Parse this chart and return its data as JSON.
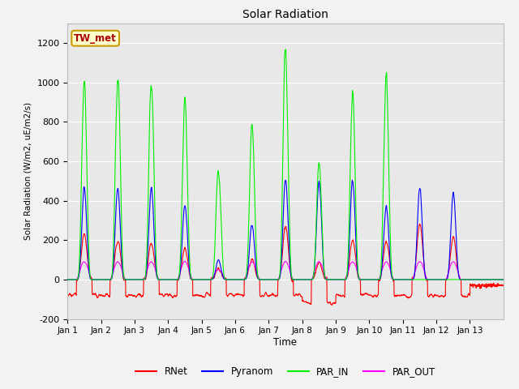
{
  "title": "Solar Radiation",
  "ylabel": "Solar Radiation (W/m2, uE/m2/s)",
  "xlabel": "Time",
  "ylim": [
    -200,
    1300
  ],
  "yticks": [
    -200,
    0,
    200,
    400,
    600,
    800,
    1000,
    1200
  ],
  "n_days": 13,
  "fig_bg": "#f2f2f2",
  "plot_bg": "#e8e8e8",
  "grid_color": "#ffffff",
  "legend_entries": [
    "RNet",
    "Pyranom",
    "PAR_IN",
    "PAR_OUT"
  ],
  "legend_colors": [
    "#ff0000",
    "#0000ff",
    "#00ee00",
    "#ff00ff"
  ],
  "site_label": "TW_met",
  "site_label_fg": "#aa0000",
  "site_label_bg": "#ffffcc",
  "site_label_edge": "#cc9900",
  "par_in_peaks": [
    1025,
    1040,
    1040,
    890,
    560,
    790,
    1180,
    620,
    940,
    1035,
    0,
    0
  ],
  "pyranom_peaks": [
    460,
    465,
    465,
    380,
    100,
    285,
    510,
    500,
    500,
    375,
    465,
    445
  ],
  "rnet_peaks": [
    230,
    200,
    185,
    160,
    55,
    105,
    270,
    85,
    200,
    200,
    285,
    220
  ],
  "par_out_peaks": [
    90,
    90,
    90,
    90,
    50,
    90,
    90,
    90,
    90,
    90,
    90,
    90
  ],
  "rnet_night": [
    -80,
    -80,
    -80,
    -80,
    -80,
    -80,
    -80,
    -120,
    -80,
    -80,
    -80,
    -80
  ]
}
